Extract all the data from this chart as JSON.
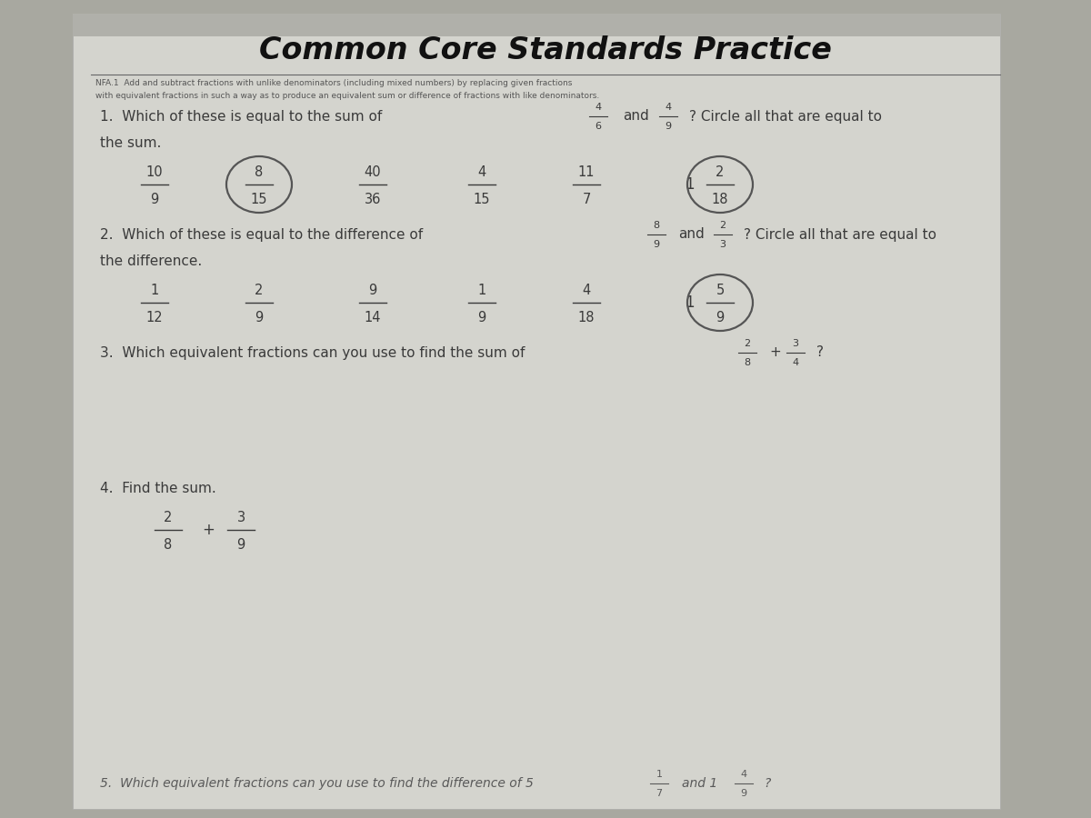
{
  "title": "Common Core Standards Practice",
  "subtitle_line1": "NFA.1  Add and subtract fractions with unlike denominators (including mixed numbers) by replacing given fractions",
  "subtitle_line2": "with equivalent fractions in such a way as to produce an equivalent sum or difference of fractions with like denominators.",
  "bg_color_outer": "#a8a8a0",
  "bg_color_paper": "#d4d4ce",
  "text_color": "#3a3a3a",
  "text_color_light": "#5a5a5a",
  "q1_text": "1.  Which of these is equal to the sum of",
  "q1_frac1_num": "4",
  "q1_frac1_den": "6",
  "q1_frac2_num": "4",
  "q1_frac2_den": "9",
  "q1_cont": "? Circle all that are equal to",
  "q1_cont2": "the sum.",
  "q1_options": [
    {
      "num": "10",
      "den": "9",
      "circled": false,
      "circle_also": true
    },
    {
      "num": "8",
      "den": "15",
      "circled": true,
      "circle_also": false
    },
    {
      "num": "40",
      "den": "36",
      "circled": false,
      "circle_also": false
    },
    {
      "num": "4",
      "den": "15",
      "circled": false,
      "circle_also": false
    },
    {
      "num": "11",
      "den": "7",
      "circled": false,
      "circle_also": false
    },
    {
      "num": "2",
      "den": "18",
      "whole": "1",
      "circled": true,
      "circle_also": false
    }
  ],
  "q2_text": "2.  Which of these is equal to the difference of",
  "q2_frac1_num": "8",
  "q2_frac1_den": "9",
  "q2_frac2_num": "2",
  "q2_frac2_den": "3",
  "q2_cont": "? Circle all that are equal to",
  "q2_cont2": "the difference.",
  "q2_options": [
    {
      "num": "1",
      "den": "12",
      "circled": false
    },
    {
      "num": "2",
      "den": "9",
      "circled": false
    },
    {
      "num": "9",
      "den": "14",
      "circled": false
    },
    {
      "num": "1",
      "den": "9",
      "circled": false
    },
    {
      "num": "4",
      "den": "18",
      "circled": false
    },
    {
      "num": "5",
      "den": "9",
      "whole": "1",
      "circled": true
    }
  ],
  "q3_text": "3.  Which equivalent fractions can you use to find the sum of",
  "q3_frac1_num": "2",
  "q3_frac1_den": "8",
  "q3_frac2_num": "3",
  "q3_frac2_den": "4",
  "q4_text": "4.  Find the sum.",
  "q4_frac1_num": "2",
  "q4_frac1_den": "8",
  "q4_frac2_num": "3",
  "q4_frac2_den": "9",
  "q5_text": "5.  Which equivalent fractions can you use to find the difference of 5",
  "q5_frac1_num": "1",
  "q5_frac1_den": "7",
  "q5_and": "and 1",
  "q5_frac2_num": "4",
  "q5_frac2_den": "9"
}
